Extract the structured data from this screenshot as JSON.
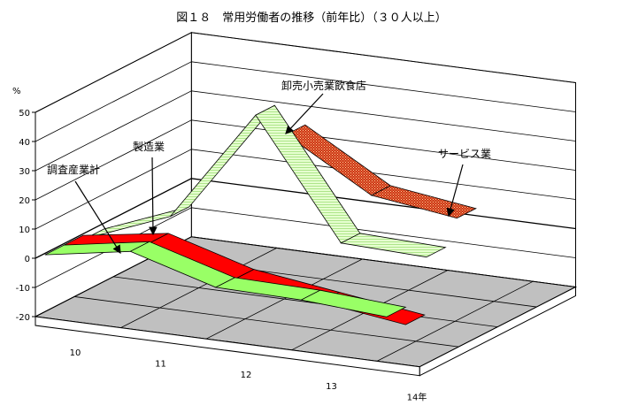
{
  "chart_data": {
    "type": "area",
    "title": "図１８　常用労働者の推移（前年比）（３０人以上）",
    "y_unit": "%",
    "ylim": [
      -20,
      50
    ],
    "y_ticks": [
      "50",
      "40",
      "30",
      "20",
      "10",
      "0",
      "-10",
      "-20"
    ],
    "categories": [
      "10",
      "11",
      "12",
      "13",
      "14年"
    ],
    "grid": true,
    "series": [
      {
        "name": "調査産業計",
        "values": [
          -0.5,
          4.5,
          -4.0,
          -4.5,
          -6.5
        ],
        "color": "#99ff66"
      },
      {
        "name": "製造業",
        "values": [
          -0.5,
          4.0,
          -4.5,
          -8.5,
          -12.5
        ],
        "color": "#ff0000"
      },
      {
        "name": "卸売小売業飲食店",
        "values": [
          -2.0,
          9.5,
          48.0,
          8.0,
          7.0
        ],
        "color": "#ccffaa"
      },
      {
        "name": "サービス業",
        "values": [
          null,
          null,
          36.0,
          19.0,
          15.0
        ],
        "color": "#cc3311"
      }
    ]
  }
}
